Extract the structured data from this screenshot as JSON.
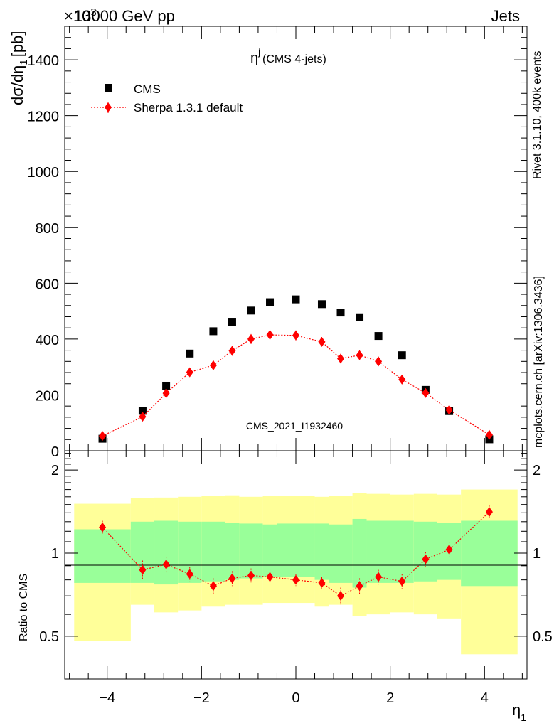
{
  "header": {
    "left_title": "13000 GeV pp",
    "right_title": "Jets",
    "exponent_label": "×10",
    "exponent_power": "3"
  },
  "side_text": {
    "rivet": "Rivet 3.1.10,  400k events",
    "mcplots": "mcplots.cern.ch [arXiv:1306.3436]"
  },
  "colors": {
    "data": "#000000",
    "mc": "#ff0000",
    "band_inner": "#99ff99",
    "band_outer": "#ffff99"
  },
  "chart_data": [
    {
      "type": "scatter",
      "title": "η",
      "title_superscript": "j",
      "title_suffix": "(CMS 4-jets)",
      "ylabel": "dσ/dη",
      "ylabel_subscript": "1",
      "ylabel_unit": "[pb]",
      "xlim": [
        -4.9,
        4.9
      ],
      "ylim": [
        0,
        1520
      ],
      "y_ticks": [
        0,
        200,
        400,
        600,
        800,
        1000,
        1200,
        1400
      ],
      "legend_position": "top-left",
      "watermark": "CMS_2021_I1932460",
      "series": [
        {
          "name": "CMS",
          "marker": "square",
          "x": [
            -4.1,
            -3.25,
            -2.75,
            -2.25,
            -1.75,
            -1.35,
            -0.95,
            -0.55,
            0.0,
            0.55,
            0.95,
            1.35,
            1.75,
            2.25,
            2.75,
            3.25,
            4.1
          ],
          "y": [
            43,
            143,
            233,
            348,
            428,
            462,
            502,
            532,
            542,
            525,
            495,
            478,
            411,
            342,
            218,
            142,
            41
          ]
        },
        {
          "name": "Sherpa 1.3.1 default",
          "marker": "diamond",
          "x": [
            -4.1,
            -3.25,
            -2.75,
            -2.25,
            -1.75,
            -1.35,
            -0.95,
            -0.55,
            0.0,
            0.55,
            0.95,
            1.35,
            1.75,
            2.25,
            2.75,
            3.25,
            4.1
          ],
          "y": [
            53,
            122,
            206,
            281,
            306,
            358,
            400,
            415,
            413,
            390,
            330,
            342,
            320,
            255,
            207,
            146,
            57
          ],
          "yerr": [
            8,
            10,
            12,
            15,
            18,
            18,
            18,
            18,
            18,
            17,
            17,
            17,
            17,
            13,
            12,
            10,
            8
          ]
        }
      ]
    },
    {
      "type": "scatter",
      "ylabel": "Ratio to CMS",
      "xlabel": "η",
      "xlabel_subscript": "1",
      "xlim": [
        -4.9,
        4.9
      ],
      "ylim": [
        0.35,
        2.35
      ],
      "y_ticks": [
        0.5,
        1,
        2
      ],
      "x_ticks": [
        -4,
        -2,
        0,
        2,
        4
      ],
      "bins": [
        -4.7,
        -3.5,
        -3.0,
        -2.5,
        -2.0,
        -1.5,
        -1.2,
        -0.7,
        -0.4,
        0.4,
        0.7,
        1.2,
        1.5,
        2.0,
        2.5,
        3.0,
        3.5,
        4.7
      ],
      "band_inner_low": [
        0.78,
        0.78,
        0.77,
        0.78,
        0.79,
        0.8,
        0.81,
        0.82,
        0.82,
        0.8,
        0.78,
        0.75,
        0.78,
        0.78,
        0.79,
        0.8,
        0.76
      ],
      "band_inner_high": [
        1.22,
        1.3,
        1.31,
        1.3,
        1.3,
        1.29,
        1.28,
        1.27,
        1.28,
        1.28,
        1.27,
        1.33,
        1.31,
        1.31,
        1.3,
        1.29,
        1.31
      ],
      "band_outer_low": [
        0.48,
        0.65,
        0.61,
        0.62,
        0.64,
        0.65,
        0.65,
        0.66,
        0.66,
        0.64,
        0.65,
        0.59,
        0.6,
        0.61,
        0.6,
        0.58,
        0.43
      ],
      "band_outer_high": [
        1.51,
        1.58,
        1.59,
        1.6,
        1.61,
        1.62,
        1.6,
        1.61,
        1.61,
        1.6,
        1.61,
        1.65,
        1.64,
        1.63,
        1.64,
        1.63,
        1.7
      ],
      "series": [
        {
          "name": "Sherpa 1.3.1 default",
          "x": [
            -4.1,
            -3.25,
            -2.75,
            -2.25,
            -1.75,
            -1.35,
            -0.95,
            -0.55,
            0.0,
            0.55,
            0.95,
            1.35,
            1.75,
            2.25,
            2.75,
            3.25,
            4.1
          ],
          "y": [
            1.24,
            0.87,
            0.91,
            0.84,
            0.76,
            0.81,
            0.83,
            0.82,
            0.8,
            0.78,
            0.7,
            0.76,
            0.82,
            0.79,
            0.95,
            1.03,
            1.41
          ],
          "yerr": [
            0.07,
            0.07,
            0.06,
            0.05,
            0.05,
            0.05,
            0.05,
            0.05,
            0.04,
            0.04,
            0.05,
            0.05,
            0.05,
            0.05,
            0.06,
            0.07,
            0.08
          ]
        }
      ]
    }
  ]
}
